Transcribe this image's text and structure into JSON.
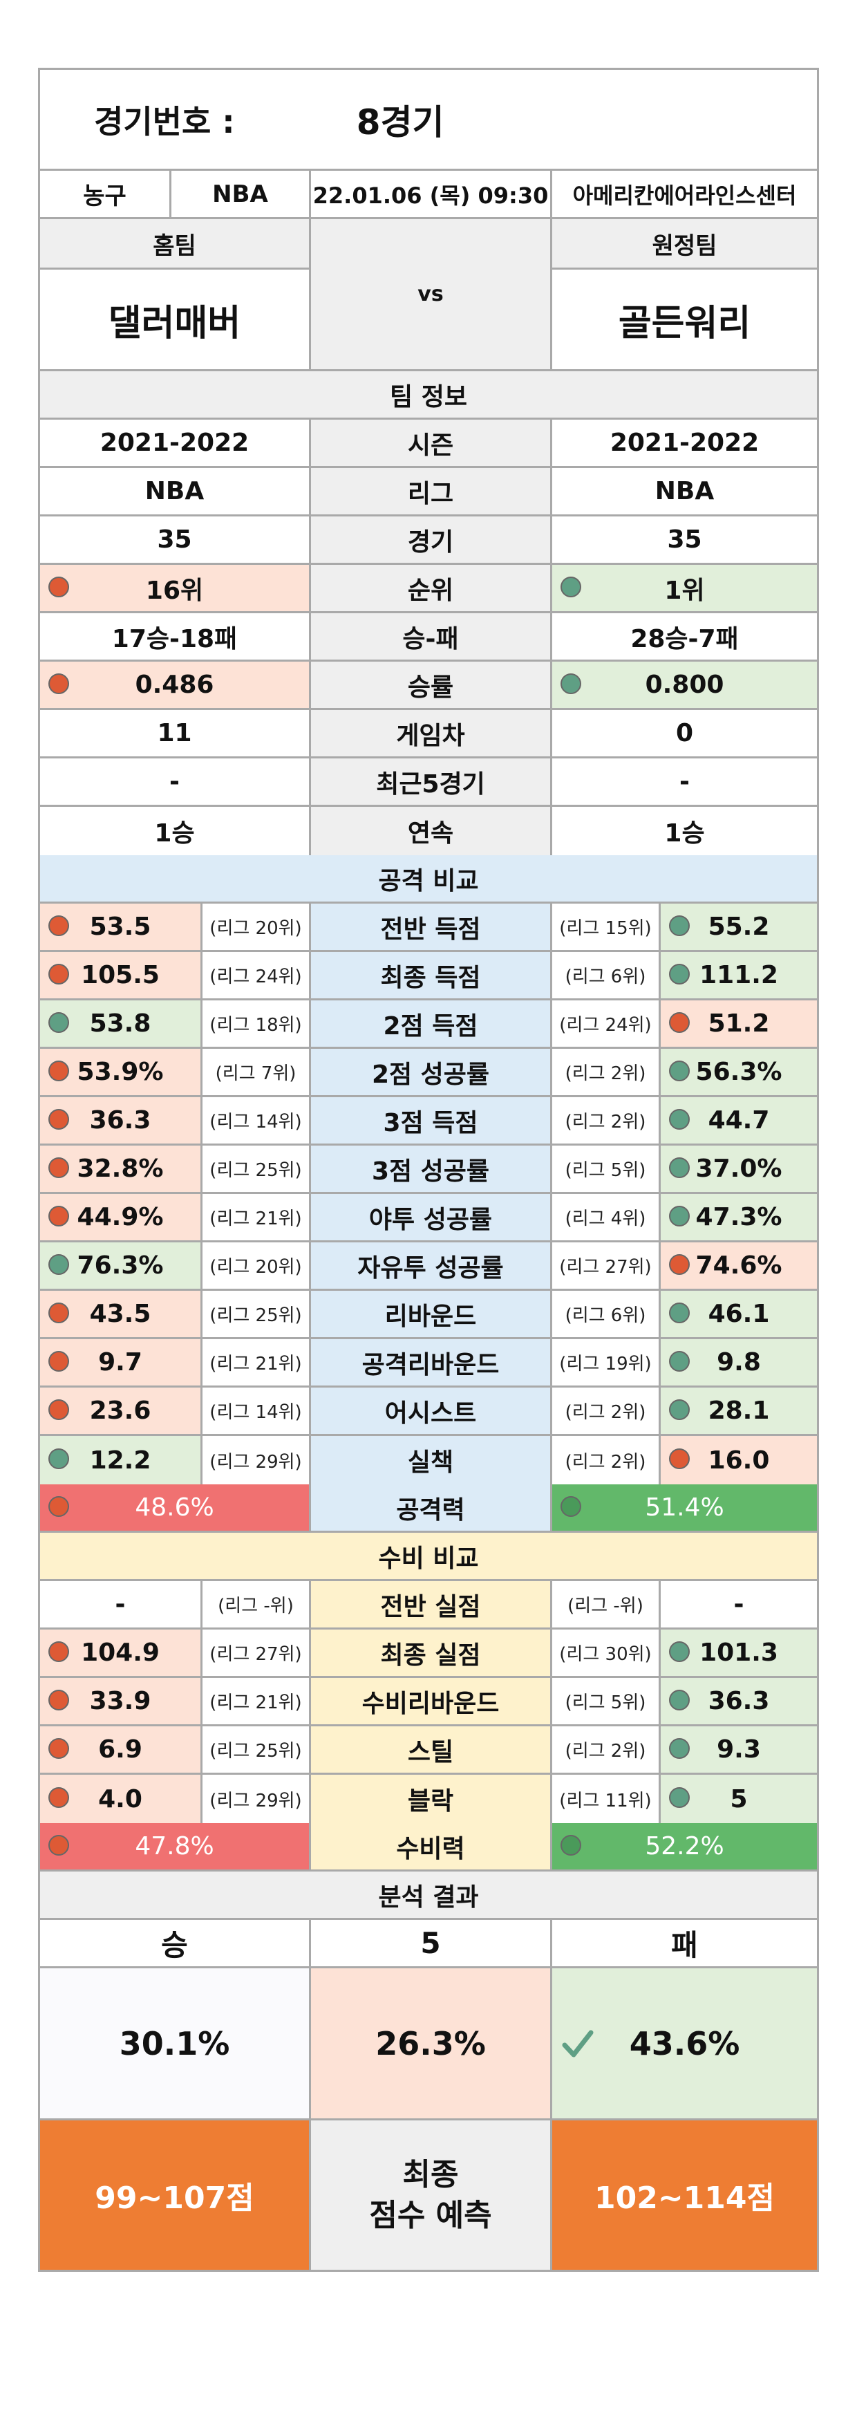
{
  "header": {
    "game_label": "경기번호 :",
    "game_number": "8경기"
  },
  "info": {
    "sport": "농구",
    "league": "NBA",
    "datetime": "22.01.06 (목) 09:30",
    "venue": "아메리칸에어라인스센터"
  },
  "teams": {
    "home_label": "홈팀",
    "away_label": "원정팀",
    "home": "댈러매버",
    "away": "골든워리",
    "vs": "vs"
  },
  "team_info": {
    "title": "팀 정보",
    "rows": [
      {
        "label": "시즌",
        "home": "2021-2022",
        "away": "2021-2022"
      },
      {
        "label": "리그",
        "home": "NBA",
        "away": "NBA"
      },
      {
        "label": "경기",
        "home": "35",
        "away": "35"
      },
      {
        "label": "순위",
        "home": "16위",
        "away": "1위"
      },
      {
        "label": "승-패",
        "home": "17승-18패",
        "away": "28승-7패"
      },
      {
        "label": "승률",
        "home": "0.486",
        "away": "0.800"
      },
      {
        "label": "게임차",
        "home": "11",
        "away": "0"
      },
      {
        "label": "최근5경기",
        "home": "-",
        "away": "-"
      },
      {
        "label": "연속",
        "home": "1승",
        "away": "1승"
      }
    ]
  },
  "attack": {
    "title": "공격 비교",
    "rows": [
      {
        "label": "전반 득점",
        "home": "53.5",
        "home_rank": "(리그 20위)",
        "away_rank": "(리그 15위)",
        "away": "55.2",
        "home_better": false
      },
      {
        "label": "최종 득점",
        "home": "105.5",
        "home_rank": "(리그 24위)",
        "away_rank": "(리그 6위)",
        "away": "111.2",
        "home_better": false
      },
      {
        "label": "2점 득점",
        "home": "53.8",
        "home_rank": "(리그 18위)",
        "away_rank": "(리그 24위)",
        "away": "51.2",
        "home_better": true
      },
      {
        "label": "2점 성공률",
        "home": "53.9%",
        "home_rank": "(리그 7위)",
        "away_rank": "(리그 2위)",
        "away": "56.3%",
        "home_better": false
      },
      {
        "label": "3점 득점",
        "home": "36.3",
        "home_rank": "(리그 14위)",
        "away_rank": "(리그 2위)",
        "away": "44.7",
        "home_better": false
      },
      {
        "label": "3점 성공률",
        "home": "32.8%",
        "home_rank": "(리그 25위)",
        "away_rank": "(리그 5위)",
        "away": "37.0%",
        "home_better": false
      },
      {
        "label": "야투 성공률",
        "home": "44.9%",
        "home_rank": "(리그 21위)",
        "away_rank": "(리그 4위)",
        "away": "47.3%",
        "home_better": false
      },
      {
        "label": "자유투 성공률",
        "home": "76.3%",
        "home_rank": "(리그 20위)",
        "away_rank": "(리그 27위)",
        "away": "74.6%",
        "home_better": true
      },
      {
        "label": "리바운드",
        "home": "43.5",
        "home_rank": "(리그 25위)",
        "away_rank": "(리그 6위)",
        "away": "46.1",
        "home_better": false
      },
      {
        "label": "공격리바운드",
        "home": "9.7",
        "home_rank": "(리그 21위)",
        "away_rank": "(리그 19위)",
        "away": "9.8",
        "home_better": false
      },
      {
        "label": "어시스트",
        "home": "23.6",
        "home_rank": "(리그 14위)",
        "away_rank": "(리그 2위)",
        "away": "28.1",
        "home_better": false
      },
      {
        "label": "실책",
        "home": "12.2",
        "home_rank": "(리그 29위)",
        "away_rank": "(리그 2위)",
        "away": "16.0",
        "home_better": true
      }
    ],
    "power_label": "공격력",
    "home_power": "48.6%",
    "away_power": "51.4%"
  },
  "defense": {
    "title": "수비 비교",
    "rows": [
      {
        "label": "전반 실점",
        "home": "-",
        "home_rank": "(리그 -위)",
        "away_rank": "(리그 -위)",
        "away": "-",
        "dots": false
      },
      {
        "label": "최종 실점",
        "home": "104.9",
        "home_rank": "(리그 27위)",
        "away_rank": "(리그 30위)",
        "away": "101.3",
        "dots": true
      },
      {
        "label": "수비리바운드",
        "home": "33.9",
        "home_rank": "(리그 21위)",
        "away_rank": "(리그 5위)",
        "away": "36.3",
        "dots": true
      },
      {
        "label": "스틸",
        "home": "6.9",
        "home_rank": "(리그 25위)",
        "away_rank": "(리그 2위)",
        "away": "9.3",
        "dots": true
      },
      {
        "label": "블락",
        "home": "4.0",
        "home_rank": "(리그 29위)",
        "away_rank": "(리그 11위)",
        "away": "5",
        "dots": true
      }
    ],
    "power_label": "수비력",
    "home_power": "47.8%",
    "away_power": "52.2%"
  },
  "result": {
    "title": "분석 결과",
    "win_label": "승",
    "draw_label": "5",
    "lose_label": "패",
    "win_pct": "30.1%",
    "draw_pct": "26.3%",
    "lose_pct": "43.6%",
    "home_score": "99~107점",
    "center_line1": "최종",
    "center_line2": "점수 예측",
    "away_score": "102~114점"
  },
  "colors": {
    "worse": "#de5a35",
    "better": "#5f9f84",
    "pink": "#fde2d6",
    "green": "#e1efda"
  }
}
